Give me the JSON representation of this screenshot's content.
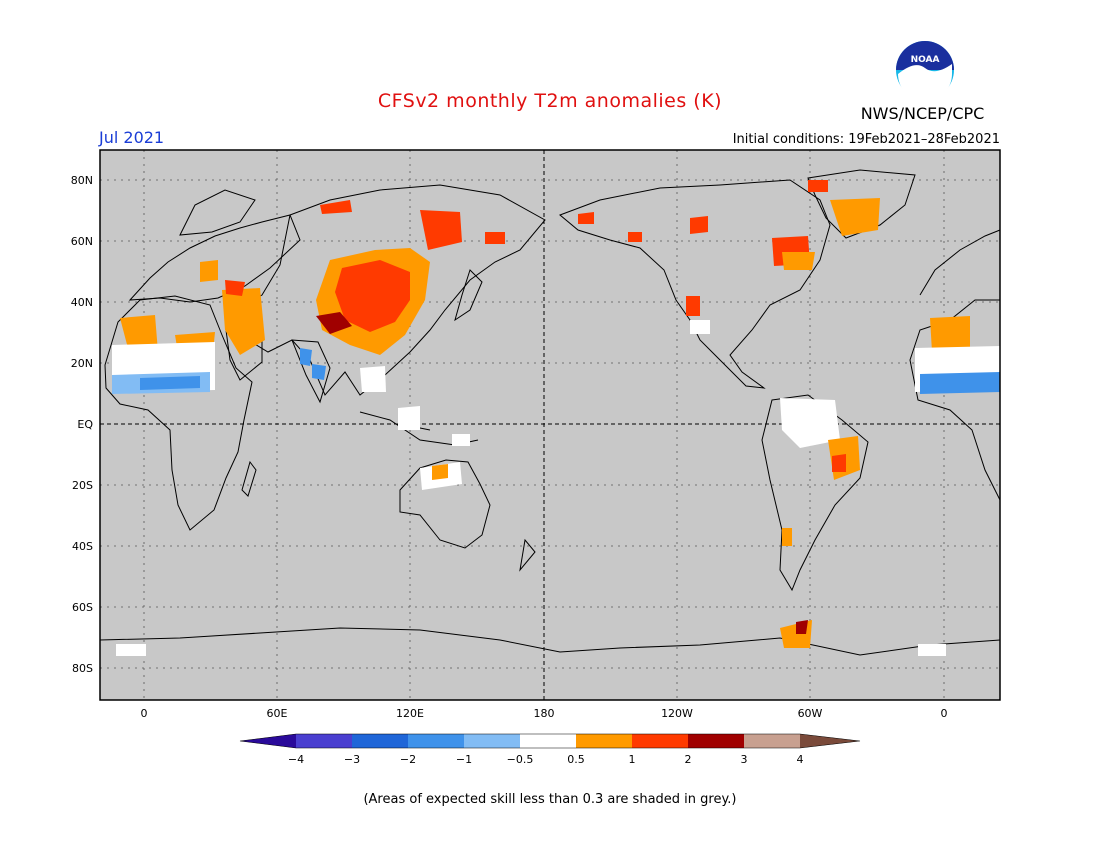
{
  "header": {
    "title": "CFSv2 monthly T2m anomalies (K)",
    "organization": "NWS/NCEP/CPC",
    "target_month": "Jul 2021",
    "initial_conditions": "Initial conditions: 19Feb2021–28Feb2021",
    "logo_text": "NOAA"
  },
  "map": {
    "lat_ticks": [
      "80N",
      "60N",
      "40N",
      "20N",
      "EQ",
      "20S",
      "40S",
      "60S",
      "80S"
    ],
    "lon_ticks": [
      "0",
      "60E",
      "120E",
      "180",
      "120W",
      "60W",
      "0"
    ],
    "land_color": "#c8c8c8"
  },
  "legend": {
    "labels": [
      "−4",
      "−3",
      "−2",
      "−1",
      "−0.5",
      "0.5",
      "1",
      "2",
      "3",
      "4"
    ],
    "colors": [
      "#2a0a9a",
      "#4a3fd0",
      "#1f66d8",
      "#3f92ea",
      "#82bcf4",
      "#ffffff",
      "#ff9a00",
      "#ff3a00",
      "#a00000",
      "#c8a090",
      "#7a4a3a"
    ]
  },
  "footnote": "(Areas of expected skill less than 0.3 are shaded in grey.)"
}
